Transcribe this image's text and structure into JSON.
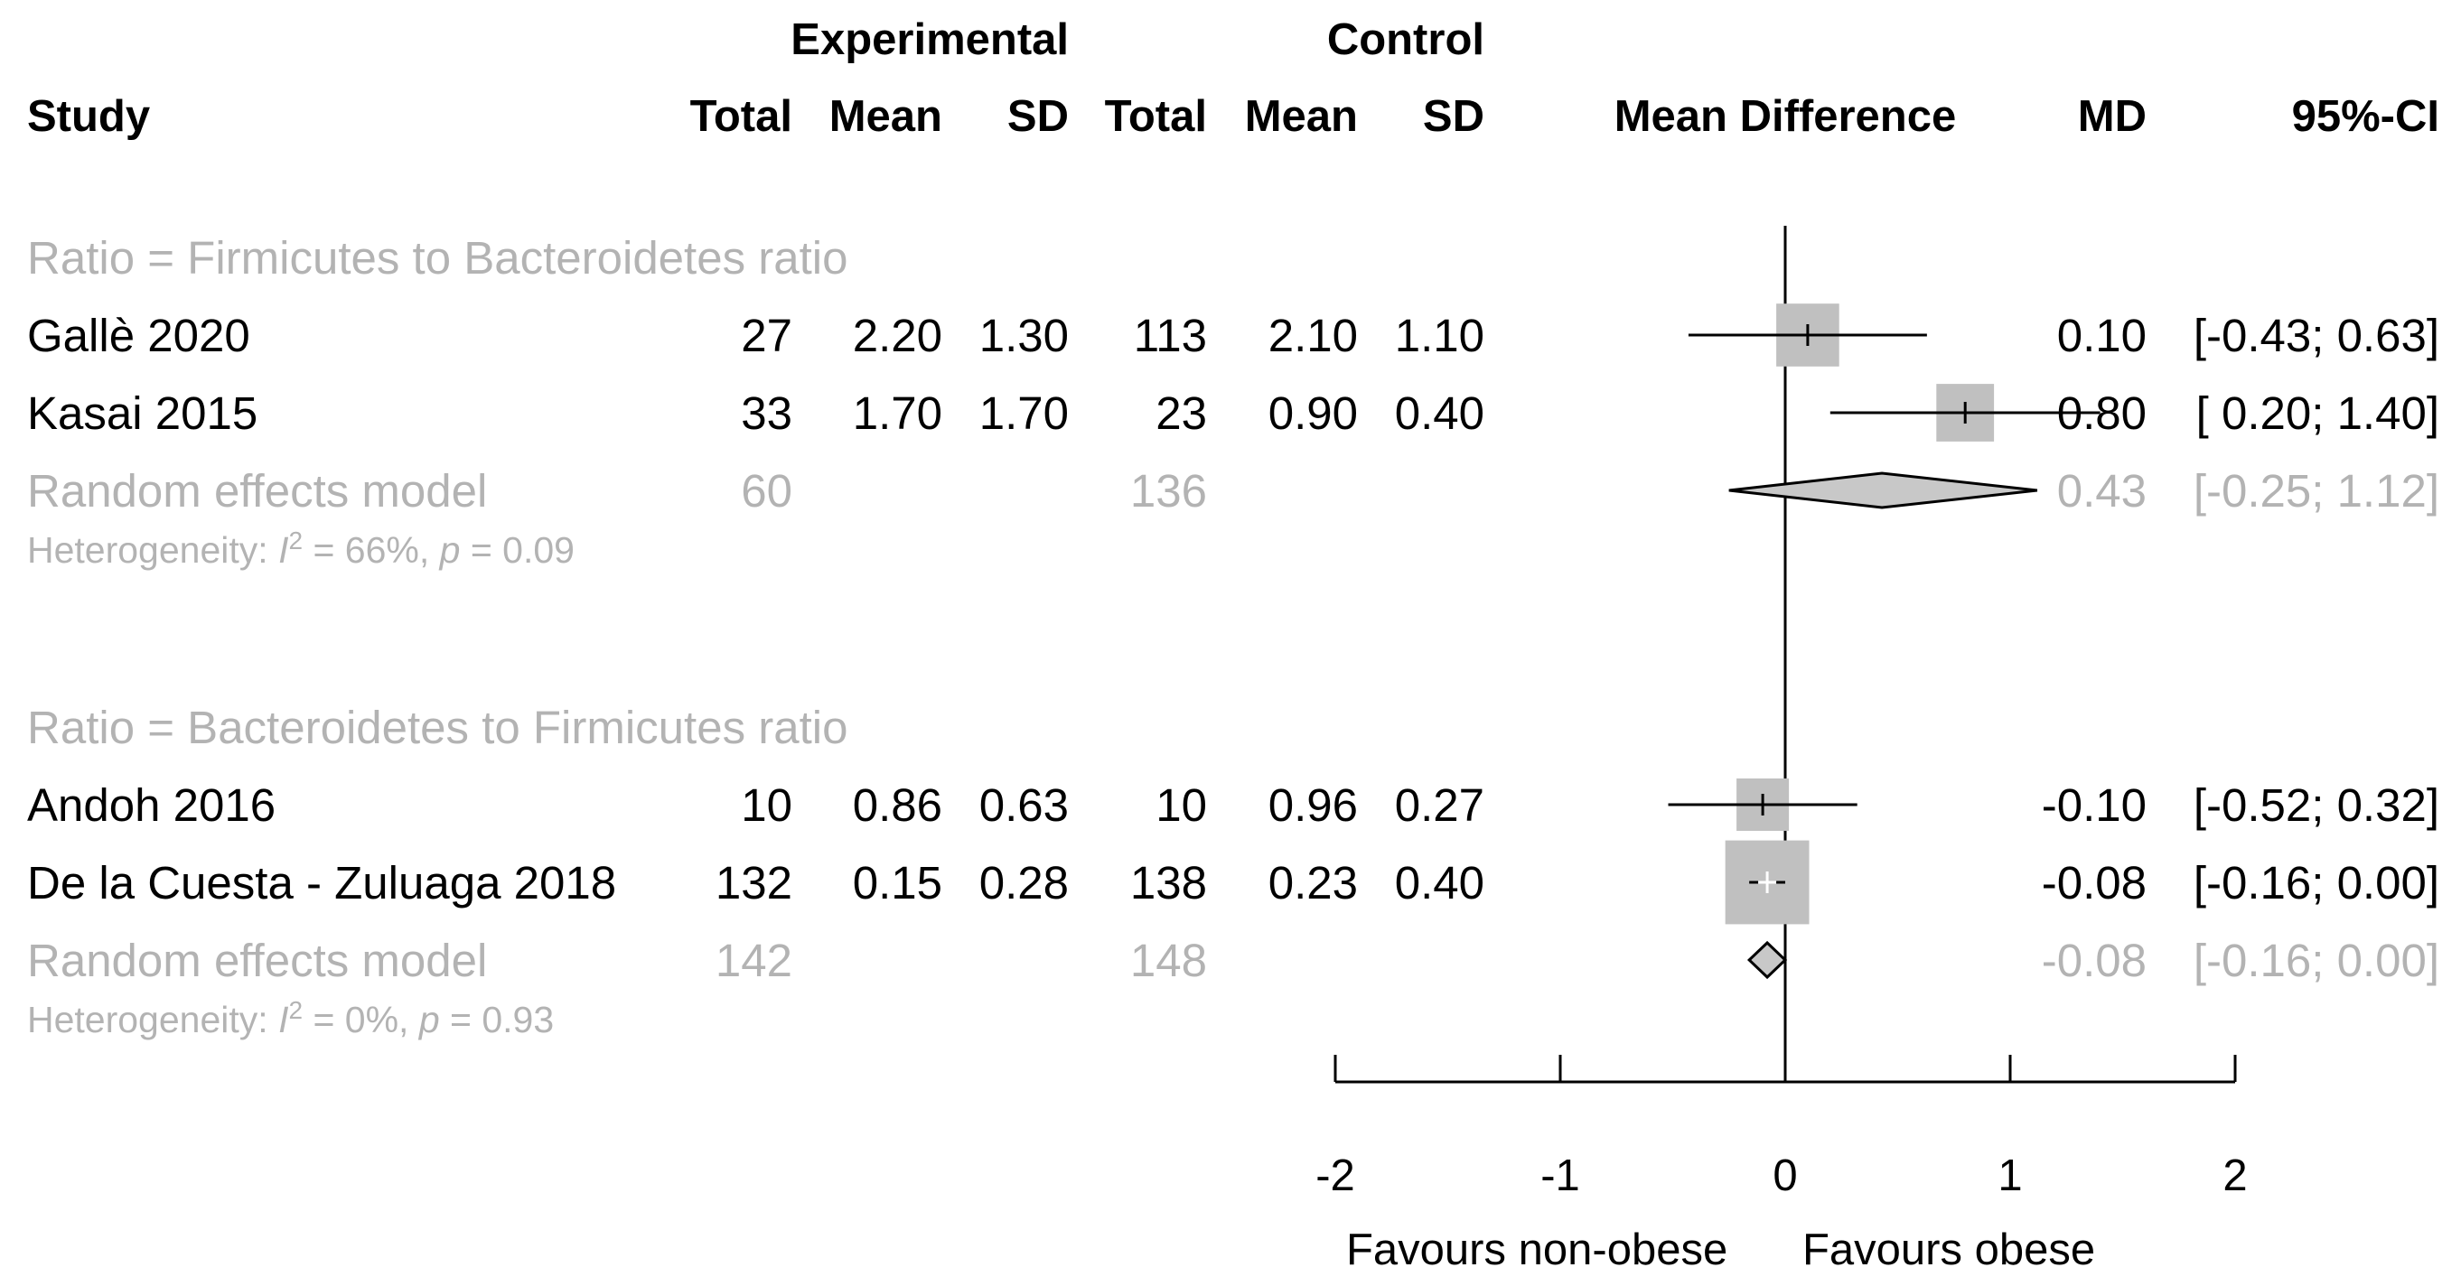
{
  "header": {
    "group_experimental": "Experimental",
    "group_control": "Control",
    "study": "Study",
    "total": "Total",
    "mean": "Mean",
    "sd": "SD",
    "mean_difference": "Mean Difference",
    "md": "MD",
    "ci": "95%-CI"
  },
  "axis": {
    "ticks": [
      "-2",
      "-1",
      "0",
      "1",
      "2"
    ],
    "favours_left": "Favours non-obese",
    "favours_right": "Favours obese"
  },
  "chart_data": {
    "type": "forest",
    "xlim": [
      -2,
      2
    ],
    "null_line": 0,
    "marker_color": "#c0c0c0",
    "subgroup_color": "#b3b3b3",
    "subgroups": [
      {
        "label": "Ratio = Firmicutes to Bacteroidetes ratio",
        "studies": [
          {
            "study": "Gallè 2020",
            "e_total": "27",
            "e_mean": "2.20",
            "e_sd": "1.30",
            "c_total": "113",
            "c_mean": "2.10",
            "c_sd": "1.10",
            "md_text": "0.10",
            "ci_text": "[-0.43; 0.63]",
            "md": 0.1,
            "lower": -0.43,
            "upper": 0.63,
            "weight": 48
          },
          {
            "study": "Kasai 2015",
            "e_total": "33",
            "e_mean": "1.70",
            "e_sd": "1.70",
            "c_total": "23",
            "c_mean": "0.90",
            "c_sd": "0.40",
            "md_text": "0.80",
            "ci_text": "[ 0.20; 1.40]",
            "md": 0.8,
            "lower": 0.2,
            "upper": 1.4,
            "weight": 44
          }
        ],
        "model": {
          "label": "Random effects model",
          "e_total": "60",
          "c_total": "136",
          "md_text": "0.43",
          "ci_text": "[-0.25; 1.12]",
          "md": 0.43,
          "lower": -0.25,
          "upper": 1.12
        },
        "heterogeneity": {
          "prefix": "Heterogeneity: ",
          "i_symbol": "I",
          "superscript": "2",
          "i2_value": " = 66%, ",
          "p_symbol": "p",
          "p_value": " = 0.09"
        }
      },
      {
        "label": "Ratio = Bacteroidetes to Firmicutes ratio",
        "studies": [
          {
            "study": "Andoh 2016",
            "e_total": "10",
            "e_mean": "0.86",
            "e_sd": "0.63",
            "c_total": "10",
            "c_mean": "0.96",
            "c_sd": "0.27",
            "md_text": "-0.10",
            "ci_text": "[-0.52; 0.32]",
            "md": -0.1,
            "lower": -0.52,
            "upper": 0.32,
            "weight": 40
          },
          {
            "study": "De la Cuesta - Zuluaga 2018",
            "e_total": "132",
            "e_mean": "0.15",
            "e_sd": "0.28",
            "c_total": "138",
            "c_mean": "0.23",
            "c_sd": "0.40",
            "md_text": "-0.08",
            "ci_text": "[-0.16; 0.00]",
            "md": -0.08,
            "lower": -0.16,
            "upper": 0.0,
            "weight": 64
          }
        ],
        "model": {
          "label": "Random effects model",
          "e_total": "142",
          "c_total": "148",
          "md_text": "-0.08",
          "ci_text": "[-0.16; 0.00]",
          "md": -0.08,
          "lower": -0.16,
          "upper": 0.0
        },
        "heterogeneity": {
          "prefix": "Heterogeneity: ",
          "i_symbol": "I",
          "superscript": "2",
          "i2_value": " = 0%, ",
          "p_symbol": "p",
          "p_value": " = 0.93"
        }
      }
    ]
  }
}
